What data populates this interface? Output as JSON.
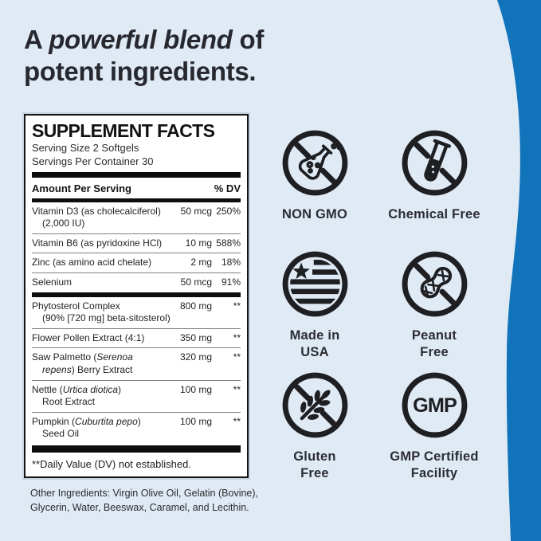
{
  "page": {
    "background_color": "#e0eaf5",
    "wave_color": "#1173ba",
    "icon_color": "#1e1f23",
    "text_color": "#26282e"
  },
  "heading": {
    "line1_prefix": "A ",
    "line1_emphasis": "powerful blend",
    "line1_suffix": " of",
    "line2": "potent ingredients."
  },
  "supplement_facts": {
    "title": "SUPPLEMENT FACTS",
    "serving_size": "Serving Size 2 Softgels",
    "servings_per_container": "Servings Per Container 30",
    "column_header_left": "Amount Per Serving",
    "column_header_right": "% DV",
    "vitamin_rows": [
      {
        "name_segments": [
          {
            "text": "Vitamin D3 (as cholecalciferol)\n(2,000 IU)",
            "italic": false
          }
        ],
        "amount": "50 mcg",
        "dv": "250%"
      },
      {
        "name_segments": [
          {
            "text": "Vitamin B6 (as pyridoxine HCl)",
            "italic": false
          }
        ],
        "amount": "10 mg",
        "dv": "588%"
      },
      {
        "name_segments": [
          {
            "text": "Zinc (as amino acid chelate)",
            "italic": false
          }
        ],
        "amount": "2 mg",
        "dv": "18%"
      },
      {
        "name_segments": [
          {
            "text": "Selenium",
            "italic": false
          }
        ],
        "amount": "50 mcg",
        "dv": "91%"
      }
    ],
    "blend_rows": [
      {
        "name_segments": [
          {
            "text": "Phytosterol Complex\n(90% [720 mg] beta-sitosterol)",
            "italic": false
          }
        ],
        "amount": "800 mg",
        "dv": "**"
      },
      {
        "name_segments": [
          {
            "text": "Flower Pollen Extract (4:1)",
            "italic": false
          }
        ],
        "amount": "350 mg",
        "dv": "**"
      },
      {
        "name_segments": [
          {
            "text": "Saw Palmetto (",
            "italic": false
          },
          {
            "text": "Serenoa\nrepens",
            "italic": true
          },
          {
            "text": ") Berry Extract",
            "italic": false
          }
        ],
        "amount": "320 mg",
        "dv": "**"
      },
      {
        "name_segments": [
          {
            "text": "Nettle (",
            "italic": false
          },
          {
            "text": "Urtica diotica",
            "italic": true
          },
          {
            "text": ")\nRoot Extract",
            "italic": false
          }
        ],
        "amount": "100 mg",
        "dv": "**"
      },
      {
        "name_segments": [
          {
            "text": "Pumpkin (",
            "italic": false
          },
          {
            "text": "Cuburtita pepo",
            "italic": true
          },
          {
            "text": ")\nSeed Oil",
            "italic": false
          }
        ],
        "amount": "100 mg",
        "dv": "**"
      }
    ],
    "footnote": "**Daily Value (DV) not established."
  },
  "other_ingredients": "Other Ingredients: Virgin Olive Oil, Gelatin (Bovine), Glycerin, Water, Beeswax, Caramel, and Lecithin.",
  "badges": [
    {
      "icon": "no-flask-icon",
      "label": "NON GMO"
    },
    {
      "icon": "no-test-tube-icon",
      "label": "Chemical Free"
    },
    {
      "icon": "usa-flag-icon",
      "label": "Made in\nUSA"
    },
    {
      "icon": "no-peanut-icon",
      "label": "Peanut\nFree"
    },
    {
      "icon": "no-wheat-icon",
      "label": "Gluten\nFree"
    },
    {
      "icon": "gmp-circle-icon",
      "label": "GMP Certified\nFacility"
    }
  ]
}
